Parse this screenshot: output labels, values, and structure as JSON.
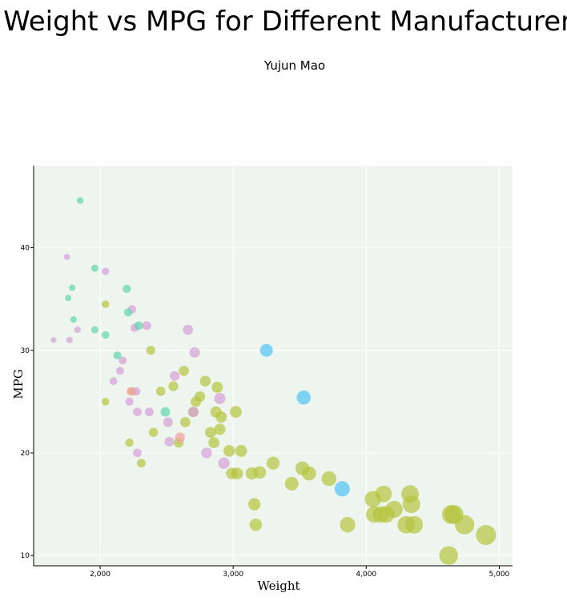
{
  "chart_data": {
    "type": "scatter",
    "title": "Weight vs MPG for Different Manufacturers",
    "subtitle": "Yujun Mao",
    "xlabel": "Weight",
    "ylabel": "MPG",
    "xlim": [
      1500,
      5100
    ],
    "ylim": [
      9,
      48
    ],
    "x_ticks": [
      2000,
      3000,
      4000,
      5000
    ],
    "x_tick_labels": [
      "2,000",
      "3,000",
      "4,000",
      "5,000"
    ],
    "y_ticks": [
      10,
      20,
      30,
      40
    ],
    "y_tick_labels": [
      "10",
      "20",
      "30",
      "40"
    ],
    "grid": true,
    "legend": "none",
    "size_encoding": "weight",
    "background_color": "#eef5ee",
    "grid_color": "#ffffff",
    "series": [
      {
        "color": "#b5c43d",
        "points": [
          [
            2240,
            26
          ],
          [
            2040,
            34.5
          ],
          [
            2040,
            25
          ],
          [
            2220,
            21
          ],
          [
            2310,
            19
          ],
          [
            2380,
            30
          ],
          [
            2400,
            22
          ],
          [
            2455,
            26
          ],
          [
            2550,
            26.5
          ],
          [
            2590,
            21
          ],
          [
            2630,
            28
          ],
          [
            2640,
            23
          ],
          [
            2700,
            24
          ],
          [
            2720,
            25
          ],
          [
            2750,
            25.5
          ],
          [
            2790,
            27
          ],
          [
            2830,
            22
          ],
          [
            2855,
            21
          ],
          [
            2870,
            24
          ],
          [
            2880,
            26.4
          ],
          [
            2900,
            22.3
          ],
          [
            2910,
            23.5
          ],
          [
            2970,
            20.2
          ],
          [
            2990,
            18
          ],
          [
            3020,
            24
          ],
          [
            3030,
            18
          ],
          [
            3060,
            20.2
          ],
          [
            3140,
            18
          ],
          [
            3160,
            15
          ],
          [
            3170,
            13
          ],
          [
            3200,
            18.1
          ],
          [
            3300,
            19
          ],
          [
            3440,
            17
          ],
          [
            3520,
            18.5
          ],
          [
            3570,
            18
          ],
          [
            3720,
            17.5
          ],
          [
            3860,
            13
          ],
          [
            4050,
            15.5
          ],
          [
            4060,
            14
          ],
          [
            4110,
            14
          ],
          [
            4130,
            16
          ],
          [
            4150,
            14
          ],
          [
            4210,
            14.5
          ],
          [
            4300,
            13
          ],
          [
            4330,
            16
          ],
          [
            4340,
            15
          ],
          [
            4360,
            13
          ],
          [
            4620,
            10
          ],
          [
            4640,
            14
          ],
          [
            4660,
            14
          ],
          [
            4740,
            13
          ],
          [
            4900,
            12
          ]
        ]
      },
      {
        "color": "#d7a0d8",
        "points": [
          [
            1650,
            31
          ],
          [
            1750,
            39.1
          ],
          [
            1770,
            31
          ],
          [
            1830,
            32
          ],
          [
            2040,
            37.7
          ],
          [
            2100,
            27
          ],
          [
            2150,
            28
          ],
          [
            2170,
            29
          ],
          [
            2220,
            25
          ],
          [
            2240,
            34
          ],
          [
            2260,
            32.2
          ],
          [
            2270,
            26
          ],
          [
            2280,
            20
          ],
          [
            2280,
            24
          ],
          [
            2350,
            32.4
          ],
          [
            2370,
            24
          ],
          [
            2510,
            23
          ],
          [
            2520,
            21.1
          ],
          [
            2560,
            27.5
          ],
          [
            2660,
            32
          ],
          [
            2700,
            24
          ],
          [
            2710,
            29.8
          ],
          [
            2800,
            20
          ],
          [
            2900,
            25.3
          ],
          [
            2930,
            19
          ]
        ]
      },
      {
        "color": "#5fd4ae",
        "points": [
          [
            1850,
            44.6
          ],
          [
            1760,
            35.1
          ],
          [
            1790,
            36.1
          ],
          [
            1800,
            33
          ],
          [
            1960,
            38
          ],
          [
            1960,
            32
          ],
          [
            2040,
            31.5
          ],
          [
            2130,
            29.5
          ],
          [
            2200,
            36
          ],
          [
            2210,
            33.7
          ],
          [
            2290,
            32.4
          ],
          [
            2490,
            24
          ]
        ]
      },
      {
        "color": "#4fc3f7",
        "points": [
          [
            3250,
            30
          ],
          [
            3530,
            25.4
          ],
          [
            3820,
            16.5
          ]
        ]
      },
      {
        "color": "#f7a0a0",
        "points": [
          [
            2230,
            26
          ],
          [
            2600,
            21.5
          ]
        ]
      }
    ]
  }
}
